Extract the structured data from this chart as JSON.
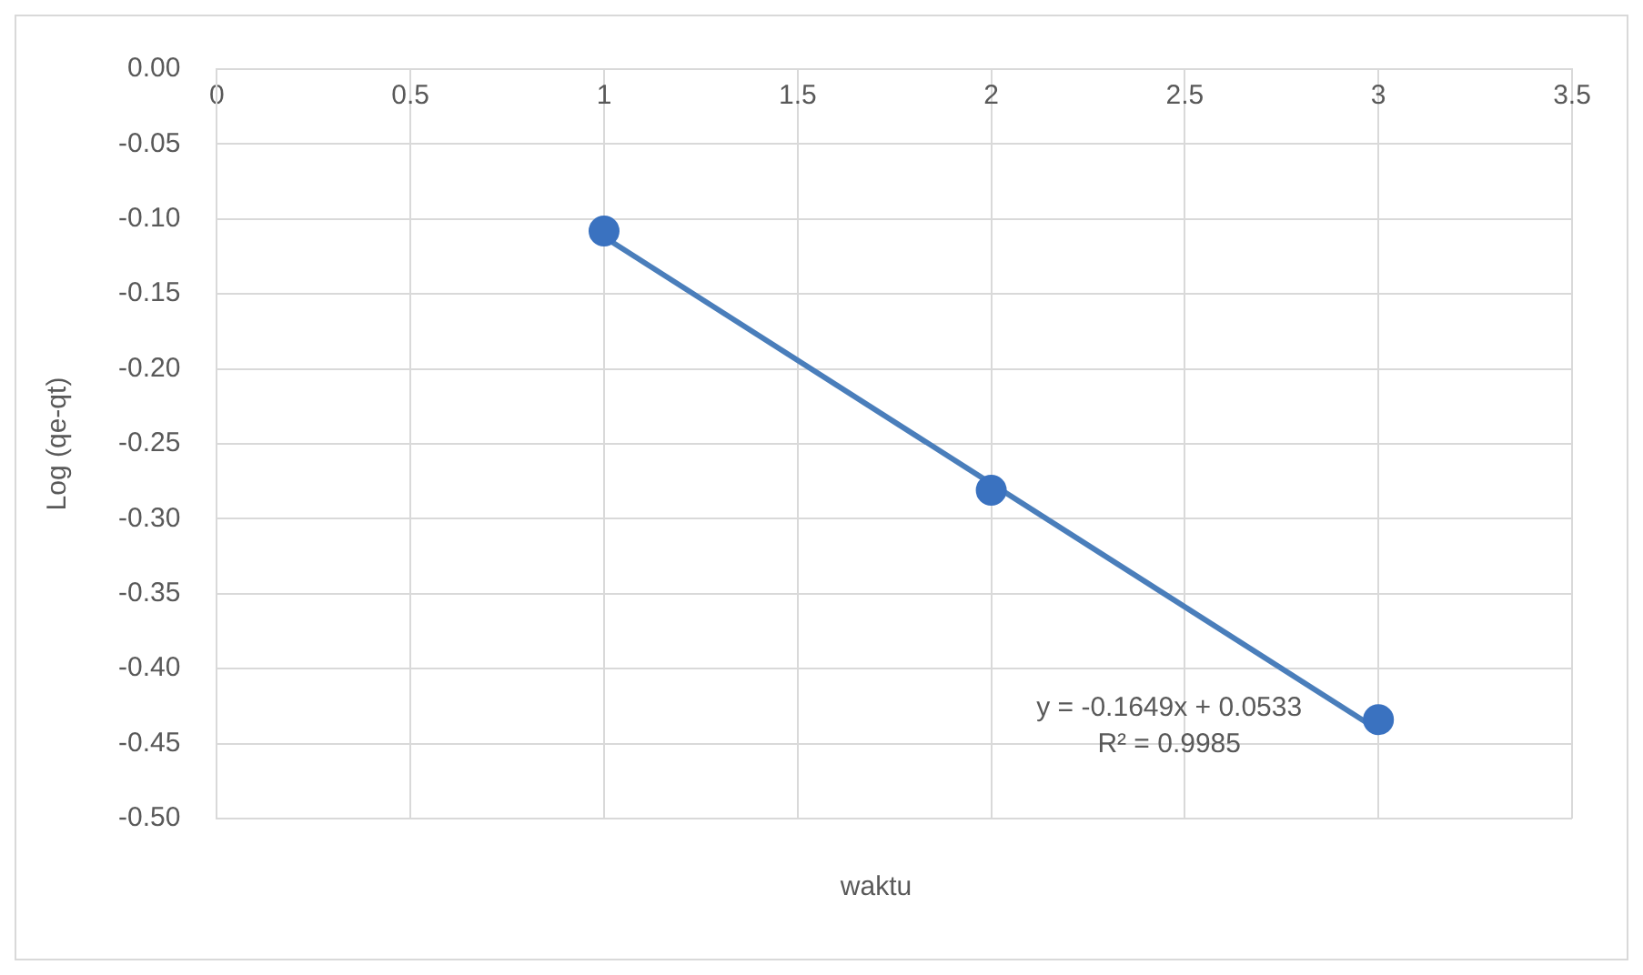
{
  "chart_data": {
    "type": "scatter",
    "xlabel": "waktu",
    "ylabel": "Log (qe-qt)",
    "x": [
      1,
      2,
      3
    ],
    "series": [
      {
        "color": "#3a72c0",
        "values": [
          -0.108,
          -0.281,
          -0.434
        ],
        "marker": "circle"
      },
      {
        "type": "line",
        "color": "#4a7ebb",
        "x": [
          1,
          3
        ],
        "values": [
          -0.112,
          -0.441
        ],
        "marker": "none"
      }
    ],
    "annotations": [
      "y = -0.1649x + 0.0533",
      "R² = 0.9985"
    ],
    "xlim": [
      0,
      3.5
    ],
    "xticks": [
      0,
      0.5,
      1,
      1.5,
      2,
      2.5,
      3,
      3.5
    ],
    "ylim": [
      -0.5,
      0
    ],
    "yticks": [
      {
        "value": 0,
        "label": "0.00"
      },
      {
        "value": -0.05,
        "label": "-0.05"
      },
      {
        "value": -0.1,
        "label": "-0.10"
      },
      {
        "value": -0.15,
        "label": "-0.15"
      },
      {
        "value": -0.2,
        "label": "-0.20"
      },
      {
        "value": -0.25,
        "label": "-0.25"
      },
      {
        "value": -0.3,
        "label": "-0.30"
      },
      {
        "value": -0.35,
        "label": "-0.35"
      },
      {
        "value": -0.4,
        "label": "-0.40"
      },
      {
        "value": -0.45,
        "label": "-0.45"
      },
      {
        "value": -0.5,
        "label": "-0.50"
      }
    ],
    "grid": true,
    "legend": false
  }
}
